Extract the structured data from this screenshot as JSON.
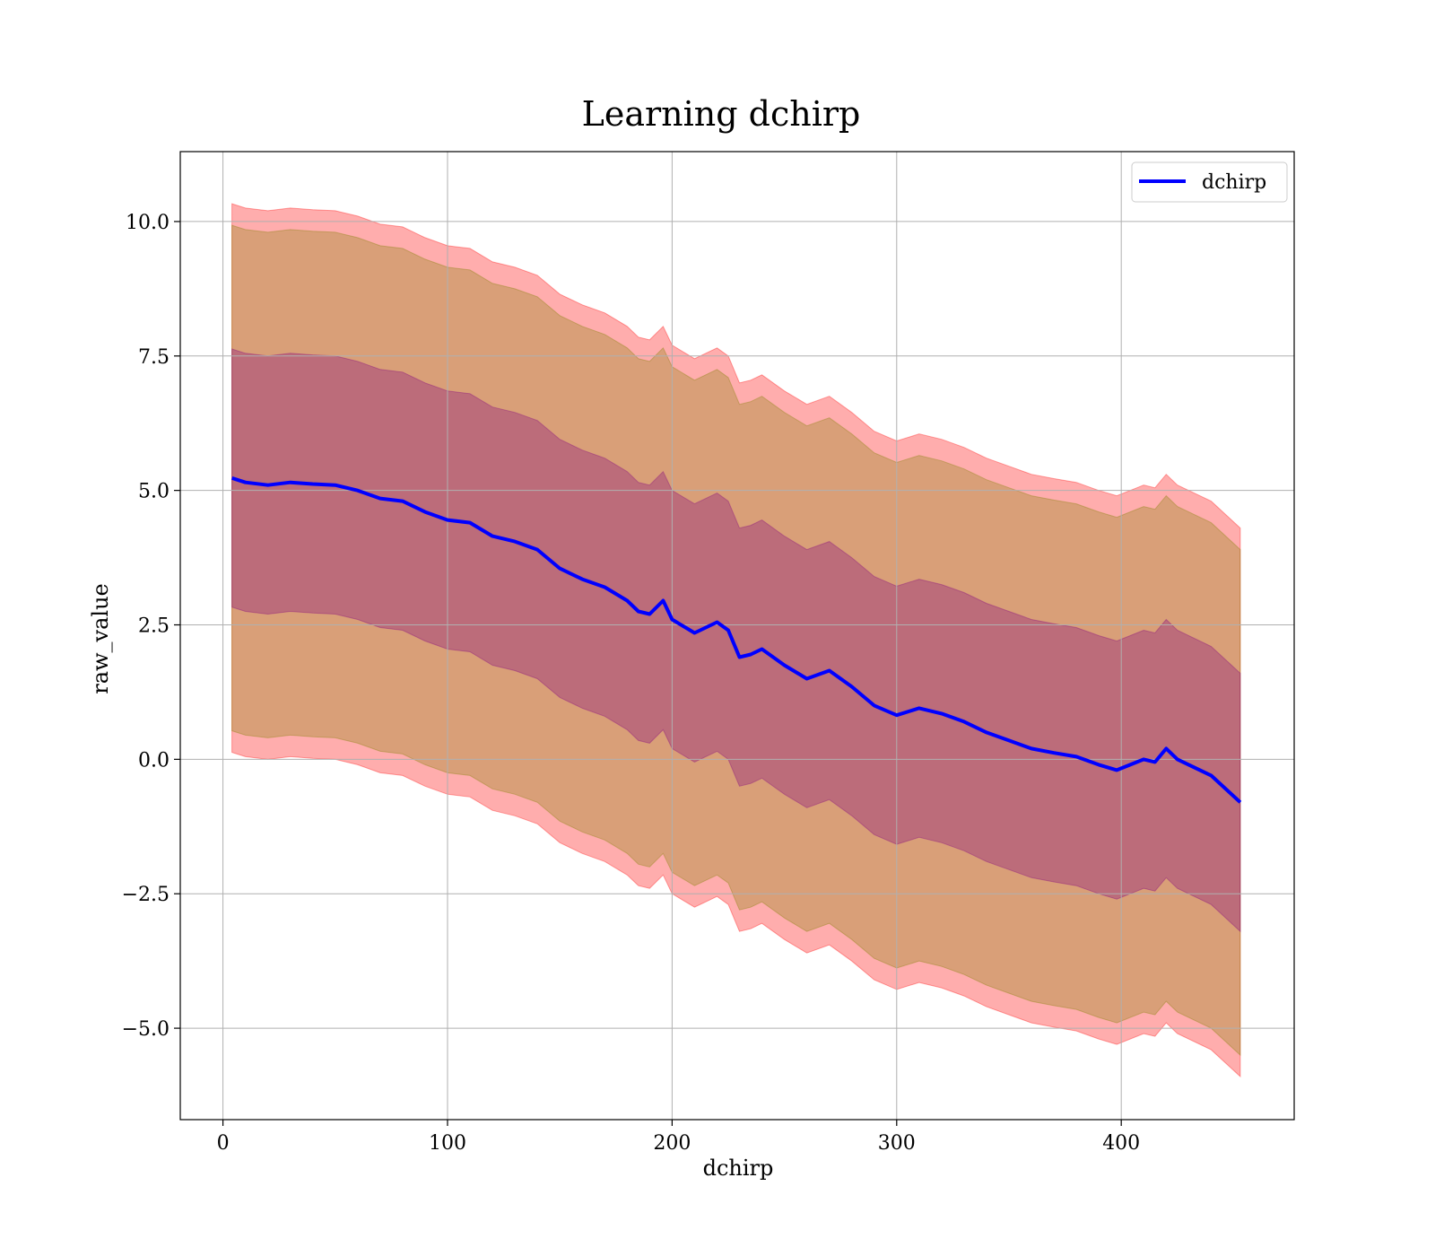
{
  "chart_data": {
    "type": "line",
    "title": "Learning dchirp",
    "xlabel": "dchirp",
    "ylabel": "raw_value",
    "xlim": [
      -19,
      477
    ],
    "ylim": [
      -6.7,
      11.3
    ],
    "xticks": [
      0,
      100,
      200,
      300,
      400
    ],
    "yticks": [
      -5.0,
      -2.5,
      0.0,
      2.5,
      5.0,
      7.5,
      10.0
    ],
    "xtick_labels": [
      "0",
      "100",
      "200",
      "300",
      "400"
    ],
    "ytick_labels": [
      "−5.0",
      "−2.5",
      "0.0",
      "2.5",
      "5.0",
      "7.5",
      "10.0"
    ],
    "grid": true,
    "legend": {
      "position": "upper right",
      "entries": [
        "dchirp"
      ]
    },
    "colors": {
      "line": "#0000ff",
      "band_outer": "#ff0000",
      "band_mid": "#808000",
      "band_inner": "#800080",
      "grid": "#b0b0b0"
    },
    "series": [
      {
        "name": "dchirp",
        "x": [
          4,
          10,
          20,
          30,
          40,
          50,
          60,
          70,
          80,
          90,
          100,
          110,
          120,
          130,
          140,
          150,
          160,
          170,
          180,
          185,
          190,
          196,
          200,
          210,
          220,
          225,
          230,
          235,
          240,
          250,
          260,
          270,
          280,
          290,
          300,
          310,
          320,
          330,
          340,
          350,
          360,
          370,
          380,
          390,
          398,
          410,
          415,
          420,
          425,
          440,
          453
        ],
        "y": [
          5.23,
          5.15,
          5.1,
          5.15,
          5.12,
          5.1,
          5.0,
          4.85,
          4.8,
          4.6,
          4.45,
          4.4,
          4.15,
          4.05,
          3.9,
          3.55,
          3.35,
          3.2,
          2.95,
          2.75,
          2.7,
          2.95,
          2.6,
          2.35,
          2.55,
          2.4,
          1.9,
          1.95,
          2.05,
          1.75,
          1.5,
          1.65,
          1.35,
          1.0,
          0.82,
          0.95,
          0.85,
          0.7,
          0.5,
          0.35,
          0.2,
          0.12,
          0.05,
          -0.1,
          -0.2,
          0.0,
          -0.05,
          0.2,
          0.0,
          -0.3,
          -0.8
        ]
      }
    ],
    "bands": [
      {
        "name": "outer",
        "offset_upper": 5.1,
        "offset_lower": 5.1
      },
      {
        "name": "mid",
        "offset_upper": 4.7,
        "offset_lower": 4.7
      },
      {
        "name": "inner",
        "offset_upper": 2.4,
        "offset_lower": 2.4
      }
    ]
  }
}
